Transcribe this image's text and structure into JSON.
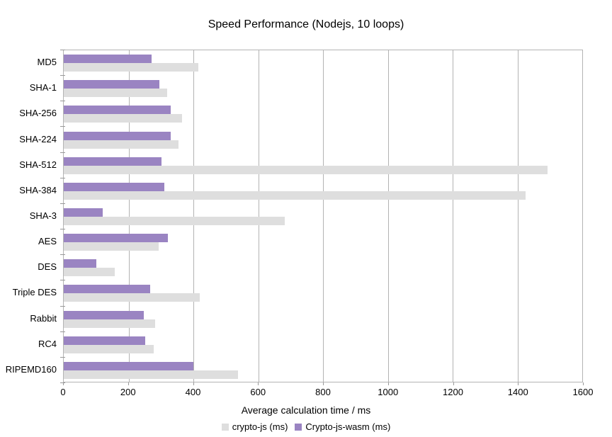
{
  "chart_data": {
    "type": "bar",
    "orientation": "horizontal",
    "title": "Speed Performance (Nodejs, 10 loops)",
    "xlabel": "Average calculation time / ms",
    "xlim": [
      0,
      1600
    ],
    "xticks": [
      0,
      200,
      400,
      600,
      800,
      1000,
      1200,
      1400,
      1600
    ],
    "grid": true,
    "legend_position": "bottom",
    "categories": [
      "MD5",
      "SHA-1",
      "SHA-256",
      "SHA-224",
      "SHA-512",
      "SHA-384",
      "SHA-3",
      "AES",
      "DES",
      "Triple DES",
      "Rabbit",
      "RC4",
      "RIPEMD160"
    ],
    "series": [
      {
        "name": "crypto-js (ms)",
        "color": "#dedede",
        "values": [
          416,
          320,
          364,
          355,
          1493,
          1426,
          681,
          293,
          157,
          419,
          281,
          278,
          538
        ]
      },
      {
        "name": "Crypto-js-wasm (ms)",
        "color": "#9a84c2",
        "values": [
          272,
          296,
          331,
          331,
          301,
          310,
          120,
          321,
          101,
          266,
          246,
          251,
          401
        ]
      }
    ],
    "colors": {
      "gridline": "#b3b3b3",
      "plot_border": "#b3b3b3",
      "text": "#000000"
    }
  }
}
